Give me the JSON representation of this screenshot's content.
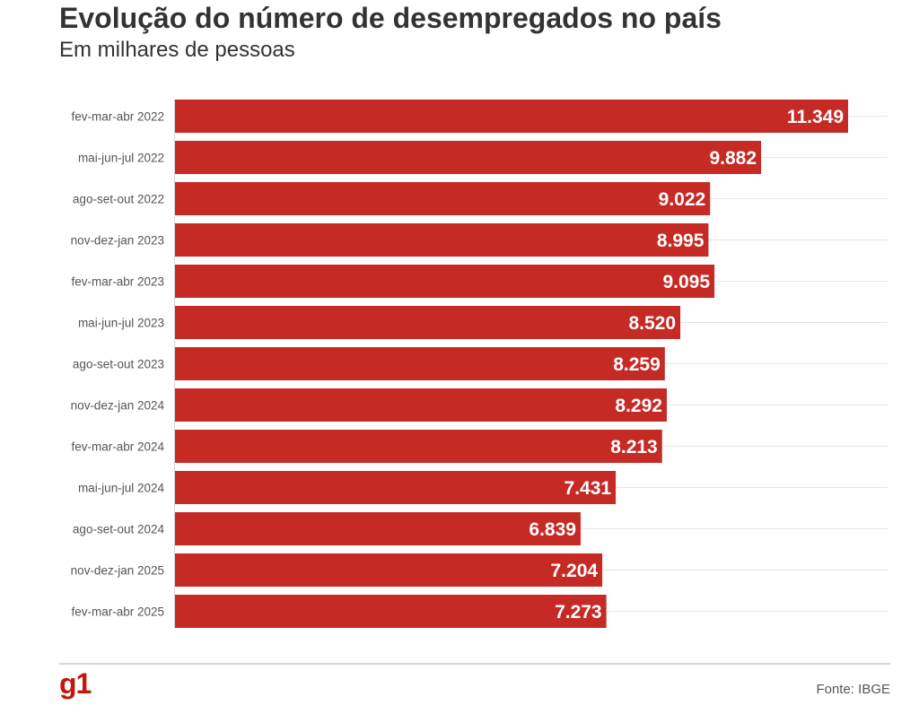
{
  "title": "Evolução do número de desempregados no país",
  "subtitle": "Em milhares de pessoas",
  "source": "Fonte: IBGE",
  "logo": "g1",
  "colors": {
    "bar": "#c62a25",
    "gridline": "#e6e6e6",
    "axis": "#d4d4d4",
    "text": "#333333",
    "logo": "#c4170c"
  },
  "chart_data": {
    "type": "bar",
    "orientation": "horizontal",
    "title": "Evolução do número de desempregados no país",
    "subtitle": "Em milhares de pessoas",
    "categories": [
      "fev-mar-abr 2022",
      "mai-jun-jul 2022",
      "ago-set-out 2022",
      "nov-dez-jan 2023",
      "fev-mar-abr 2023",
      "mai-jun-jul 2023",
      "ago-set-out 2023",
      "nov-dez-jan 2024",
      "fev-mar-abr 2024",
      "mai-jun-jul 2024",
      "ago-set-out 2024",
      "nov-dez-jan 2025",
      "fev-mar-abr 2025"
    ],
    "values": [
      11349,
      9882,
      9022,
      8995,
      9095,
      8520,
      8259,
      8292,
      8213,
      7431,
      6839,
      7204,
      7273
    ],
    "value_labels": [
      "11.349",
      "9.882",
      "9.022",
      "8.995",
      "9.095",
      "8.520",
      "8.259",
      "8.292",
      "8.213",
      "7.431",
      "6.839",
      "7.204",
      "7.273"
    ],
    "xlabel": "",
    "ylabel": "",
    "xlim": [
      0,
      12450
    ],
    "grid": true,
    "legend": "none"
  }
}
